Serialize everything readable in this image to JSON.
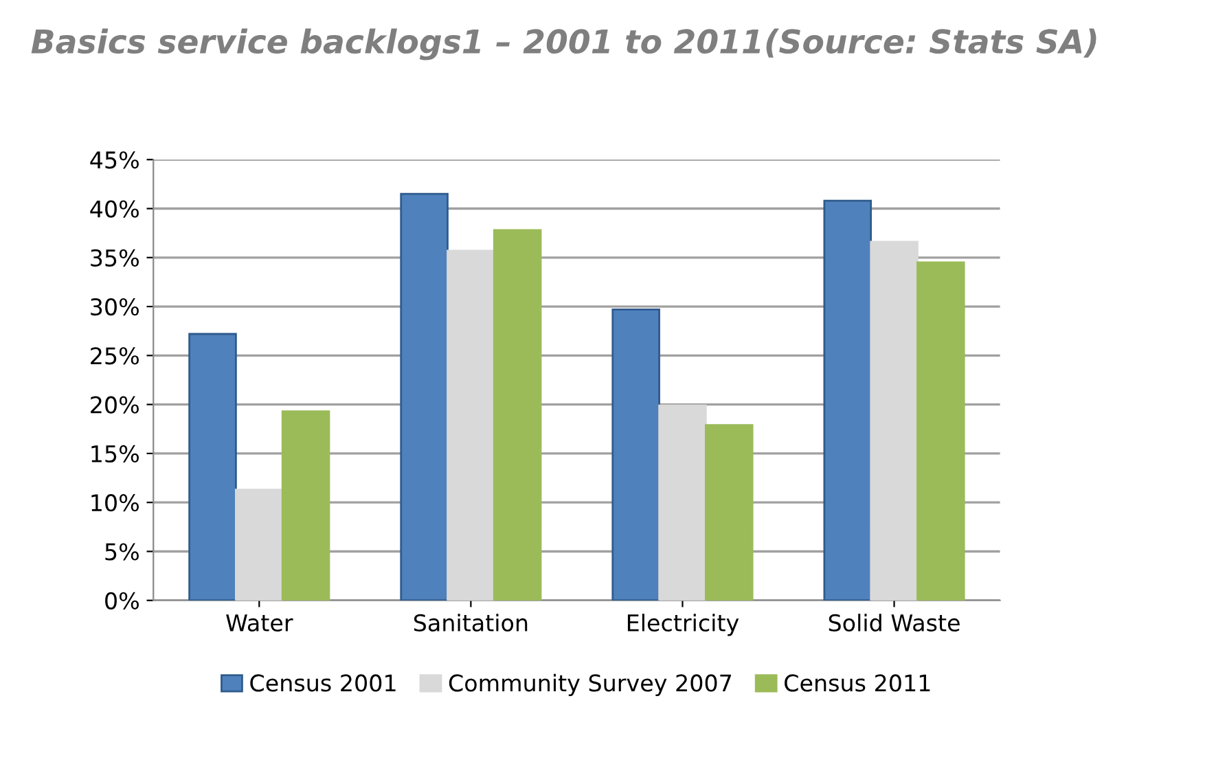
{
  "chart_data": {
    "type": "bar",
    "title": "Basics service backlogs1 – 2001 to 2011(Source: Stats SA)",
    "categories": [
      "Water",
      "Sanitation",
      "Electricity",
      "Solid Waste"
    ],
    "series": [
      {
        "name": "Census 2001",
        "color": "#4f81bd",
        "values": [
          27.2,
          41.5,
          29.7,
          40.8
        ]
      },
      {
        "name": "Community Survey 2007",
        "color": "#d9d9d9",
        "values": [
          11.3,
          35.7,
          19.9,
          36.6
        ]
      },
      {
        "name": "Census 2011",
        "color": "#9bbb59",
        "values": [
          19.3,
          37.8,
          17.9,
          34.5
        ]
      }
    ],
    "ylim": [
      0,
      45
    ],
    "yticks": [
      {
        "value": 0,
        "label": "0%"
      },
      {
        "value": 5,
        "label": "5%"
      },
      {
        "value": 10,
        "label": "10%"
      },
      {
        "value": 15,
        "label": "15%"
      },
      {
        "value": 20,
        "label": "20%"
      },
      {
        "value": 25,
        "label": "25%"
      },
      {
        "value": 30,
        "label": "30%"
      },
      {
        "value": 35,
        "label": "35%"
      },
      {
        "value": 40,
        "label": "40%"
      },
      {
        "value": 45,
        "label": "45%"
      }
    ],
    "grid": "y",
    "legend": "bottom"
  }
}
